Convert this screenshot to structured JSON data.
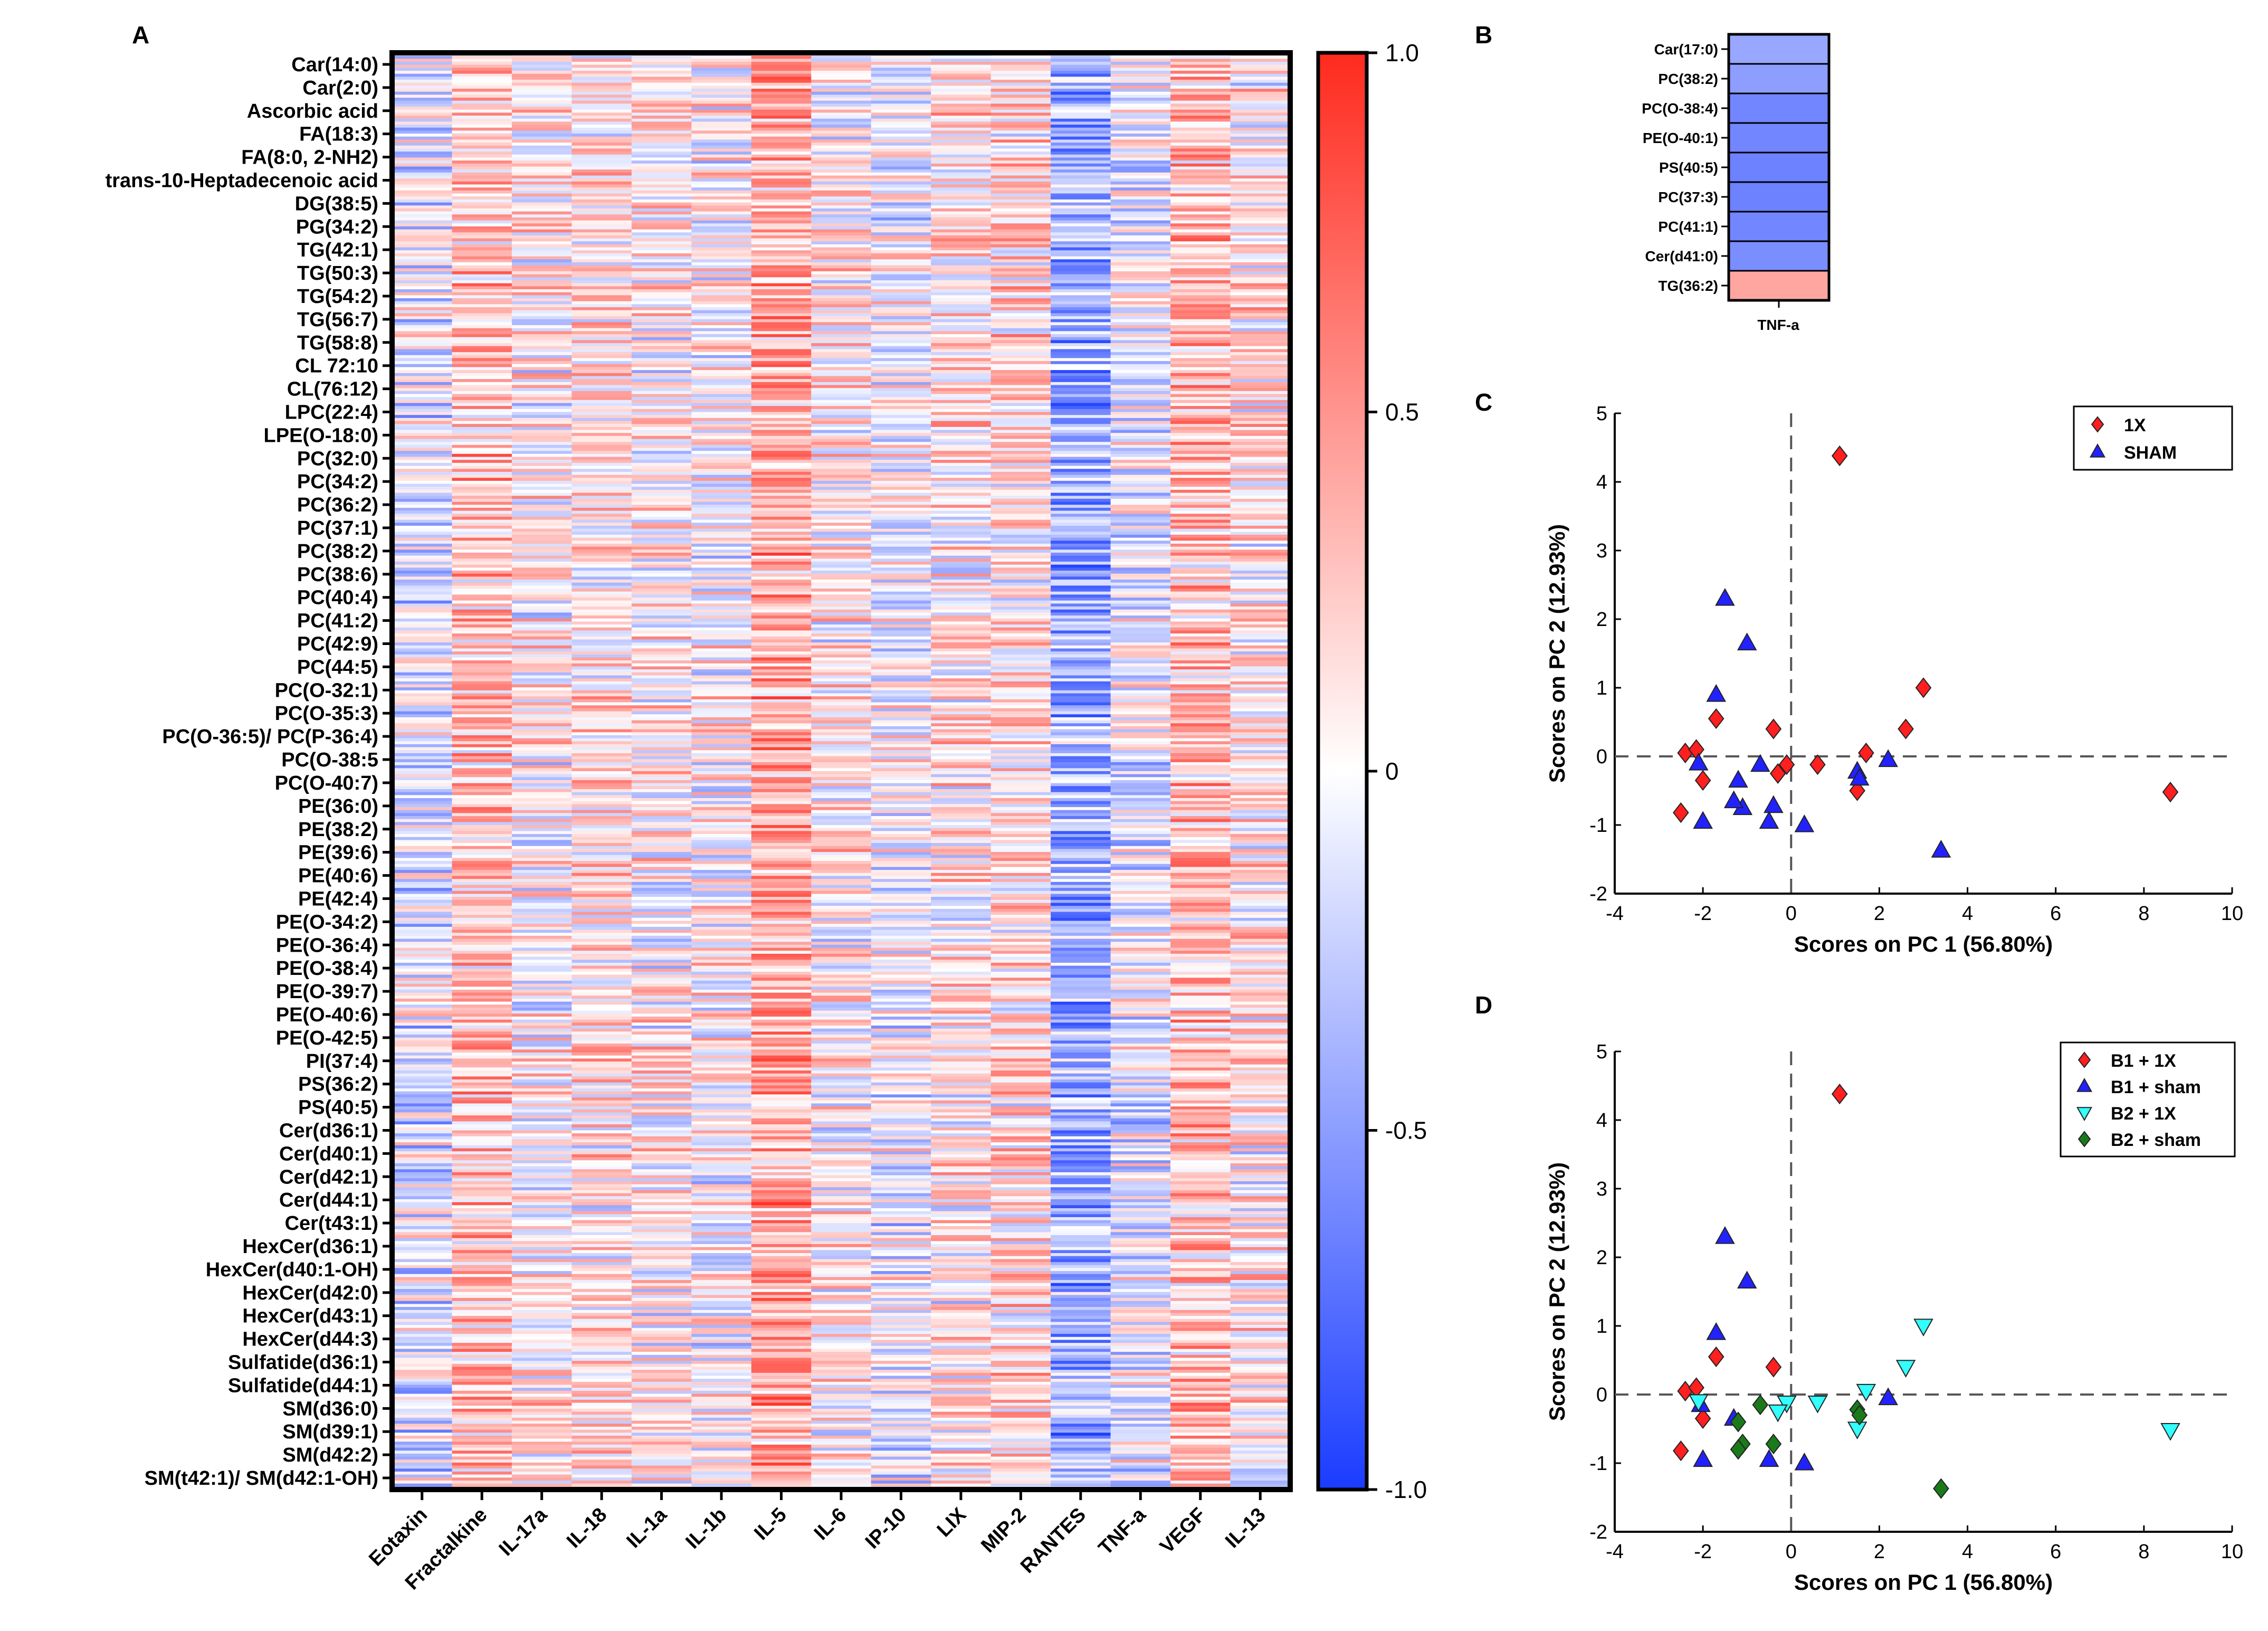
{
  "figure": {
    "panel_labels": {
      "a": "A",
      "b": "B",
      "c": "C",
      "d": "D"
    }
  },
  "colors": {
    "pos": "#ff2a1e",
    "neg": "#1a3cff",
    "zero": "#ffffff",
    "red_marker": "#ff1f1f",
    "blue_marker": "#2222ff",
    "cyan_marker": "#33ffff",
    "green_marker": "#1a7a1a",
    "axis": "#000000",
    "dash": "#555555"
  },
  "chart_data": [
    {
      "id": "A",
      "type": "heatmap",
      "title": "",
      "row_labels": [
        "Car(14:0)",
        "Car(2:0)",
        "Ascorbic acid",
        "FA(18:3)",
        "FA(8:0, 2-NH2)",
        "trans-10-Heptadecenoic acid",
        "DG(38:5)",
        "PG(34:2)",
        "TG(42:1)",
        "TG(50:3)",
        "TG(54:2)",
        "TG(56:7)",
        "TG(58:8)",
        "CL 72:10",
        "CL(76:12)",
        "LPC(22:4)",
        "LPE(O-18:0)",
        "PC(32:0)",
        "PC(34:2)",
        "PC(36:2)",
        "PC(37:1)",
        "PC(38:2)",
        "PC(38:6)",
        "PC(40:4)",
        "PC(41:2)",
        "PC(42:9)",
        "PC(44:5)",
        "PC(O-32:1)",
        "PC(O-35:3)",
        "PC(O-36:5)/ PC(P-36:4)",
        "PC(O-38:5",
        "PC(O-40:7)",
        "PE(36:0)",
        "PE(38:2)",
        "PE(39:6)",
        "PE(40:6)",
        "PE(42:4)",
        "PE(O-34:2)",
        "PE(O-36:4)",
        "PE(O-38:4)",
        "PE(O-39:7)",
        "PE(O-40:6)",
        "PE(O-42:5)",
        "PI(37:4)",
        "PS(36:2)",
        "PS(40:5)",
        "Cer(d36:1)",
        "Cer(d40:1)",
        "Cer(d42:1)",
        "Cer(d44:1)",
        "Cer(t43:1)",
        "HexCer(d36:1)",
        "HexCer(d40:1-OH)",
        "HexCer(d42:0)",
        "HexCer(d43:1)",
        "HexCer(d44:3)",
        "Sulfatide(d36:1)",
        "Sulfatide(d44:1)",
        "SM(d36:0)",
        "SM(d39:1)",
        "SM(d42:2)",
        "SM(t42:1)/ SM(d42:1-OH)"
      ],
      "column_labels": [
        "Eotaxin",
        "Fractalkine",
        "IL-17a",
        "IL-18",
        "IL-1a",
        "IL-1b",
        "IL-5",
        "IL-6",
        "IP-10",
        "LIX",
        "MIP-2",
        "RANTES",
        "TNF-a",
        "VEGF",
        "IL-13"
      ],
      "column_mean": [
        -0.12,
        0.28,
        0.05,
        0.12,
        0.08,
        0.02,
        0.38,
        0.06,
        -0.06,
        0.1,
        0.15,
        -0.42,
        -0.08,
        0.3,
        0.1
      ],
      "colorbar": {
        "range": [
          -1.0,
          1.0
        ],
        "ticks": [
          1.0,
          0.5,
          0,
          -0.5,
          -1.0
        ],
        "tick_labels": [
          "1.0",
          "0.5",
          "0",
          "-0.5",
          "-1.0"
        ]
      }
    },
    {
      "id": "B",
      "type": "heatmap",
      "row_labels": [
        "Car(17:0)",
        "PC(38:2)",
        "PC(O-38:4)",
        "PE(O-40:1)",
        "PS(40:5)",
        "PC(37:3)",
        "PC(41:1)",
        "Cer(d41:0)",
        "TG(36:2)"
      ],
      "column_labels": [
        "TNF-a"
      ],
      "values": [
        -0.45,
        -0.5,
        -0.62,
        -0.62,
        -0.64,
        -0.64,
        -0.62,
        -0.58,
        0.42
      ]
    },
    {
      "id": "C",
      "type": "scatter",
      "xlabel": "Scores on PC 1 (56.80%)",
      "ylabel": "Scores on PC 2 (12.93%)",
      "xlim": [
        -4,
        10
      ],
      "ylim": [
        -2,
        5
      ],
      "xticks": [
        -4,
        -2,
        0,
        2,
        4,
        6,
        8,
        10
      ],
      "yticks": [
        -2,
        -1,
        0,
        1,
        2,
        3,
        4,
        5
      ],
      "tick_labels_x": [
        "-4",
        "-2",
        "0",
        "2",
        "4",
        "6",
        "8",
        "10"
      ],
      "tick_labels_y": [
        "-2",
        "-1",
        "0",
        "1",
        "2",
        "3",
        "4",
        "5"
      ],
      "legend_position": "top-right",
      "series": [
        {
          "name": "1X",
          "marker": "diamond",
          "color_key": "red_marker",
          "points": [
            [
              1.1,
              4.38
            ],
            [
              3.0,
              1.0
            ],
            [
              2.6,
              0.4
            ],
            [
              -0.4,
              0.4
            ],
            [
              -1.7,
              0.55
            ],
            [
              1.7,
              0.05
            ],
            [
              1.5,
              -0.5
            ],
            [
              8.6,
              -0.52
            ],
            [
              0.6,
              -0.12
            ],
            [
              -0.1,
              -0.12
            ],
            [
              -0.3,
              -0.25
            ],
            [
              -2.4,
              0.05
            ],
            [
              -2.15,
              0.1
            ],
            [
              -2.0,
              -0.35
            ],
            [
              -2.5,
              -0.82
            ]
          ]
        },
        {
          "name": "SHAM",
          "marker": "triangle",
          "color_key": "blue_marker",
          "points": [
            [
              -1.5,
              2.3
            ],
            [
              -1.0,
              1.65
            ],
            [
              -1.7,
              0.9
            ],
            [
              -1.2,
              -0.35
            ],
            [
              -1.1,
              -0.75
            ],
            [
              -0.7,
              -0.12
            ],
            [
              -0.4,
              -0.72
            ],
            [
              -0.5,
              -0.95
            ],
            [
              0.3,
              -1.0
            ],
            [
              -2.1,
              -0.1
            ],
            [
              -2.0,
              -0.95
            ],
            [
              1.5,
              -0.22
            ],
            [
              1.55,
              -0.32
            ],
            [
              2.2,
              -0.05
            ],
            [
              3.4,
              -1.37
            ],
            [
              -1.3,
              -0.65
            ]
          ]
        }
      ]
    },
    {
      "id": "D",
      "type": "scatter",
      "xlabel": "Scores on PC 1 (56.80%)",
      "ylabel": "Scores on PC 2 (12.93%)",
      "xlim": [
        -4,
        10
      ],
      "ylim": [
        -2,
        5
      ],
      "xticks": [
        -4,
        -2,
        0,
        2,
        4,
        6,
        8,
        10
      ],
      "yticks": [
        -2,
        -1,
        0,
        1,
        2,
        3,
        4,
        5
      ],
      "tick_labels_x": [
        "-4",
        "-2",
        "0",
        "2",
        "4",
        "6",
        "8",
        "10"
      ],
      "tick_labels_y": [
        "-2",
        "-1",
        "0",
        "1",
        "2",
        "3",
        "4",
        "5"
      ],
      "legend_position": "top-right",
      "series": [
        {
          "name": "B1 + 1X",
          "marker": "diamond",
          "color_key": "red_marker",
          "points": [
            [
              1.1,
              4.38
            ],
            [
              -0.4,
              0.4
            ],
            [
              -1.7,
              0.55
            ],
            [
              -2.4,
              0.05
            ],
            [
              -2.15,
              0.1
            ],
            [
              -2.0,
              -0.35
            ],
            [
              -2.5,
              -0.82
            ]
          ]
        },
        {
          "name": "B1 + sham",
          "marker": "triangle",
          "color_key": "blue_marker",
          "points": [
            [
              -1.5,
              2.3
            ],
            [
              -1.0,
              1.65
            ],
            [
              -1.7,
              0.9
            ],
            [
              -1.3,
              -0.35
            ],
            [
              -0.5,
              -0.95
            ],
            [
              0.3,
              -1.0
            ],
            [
              -2.0,
              -0.95
            ],
            [
              -2.05,
              -0.15
            ],
            [
              2.2,
              -0.05
            ]
          ]
        },
        {
          "name": "B2 + 1X",
          "marker": "triangle-down",
          "color_key": "cyan_marker",
          "points": [
            [
              3.0,
              1.0
            ],
            [
              2.6,
              0.4
            ],
            [
              1.7,
              0.05
            ],
            [
              0.6,
              -0.12
            ],
            [
              -0.1,
              -0.12
            ],
            [
              -0.3,
              -0.25
            ],
            [
              1.5,
              -0.5
            ],
            [
              8.6,
              -0.52
            ],
            [
              -2.1,
              -0.1
            ]
          ]
        },
        {
          "name": "B2 + sham",
          "marker": "diamond",
          "color_key": "green_marker",
          "points": [
            [
              -0.7,
              -0.15
            ],
            [
              -1.2,
              -0.4
            ],
            [
              -1.1,
              -0.72
            ],
            [
              -1.2,
              -0.8
            ],
            [
              -0.4,
              -0.72
            ],
            [
              1.5,
              -0.22
            ],
            [
              1.55,
              -0.3
            ],
            [
              3.4,
              -1.37
            ]
          ]
        }
      ]
    }
  ]
}
